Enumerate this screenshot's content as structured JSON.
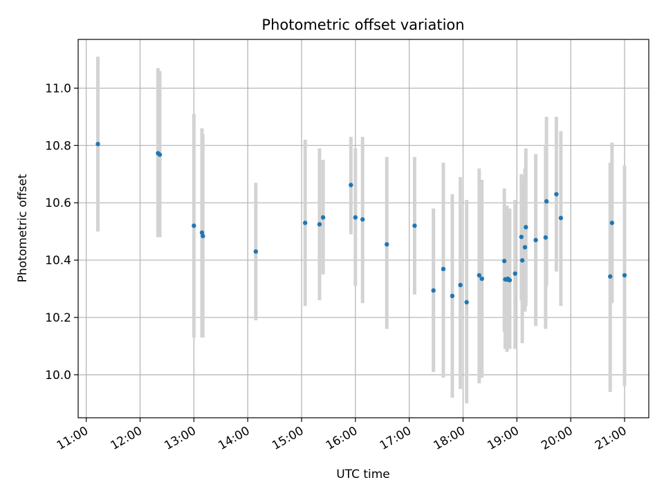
{
  "chart_data": {
    "type": "scatter",
    "title": "Photometric offset variation",
    "xlabel": "UTC time",
    "ylabel": "Photometric offset",
    "x_unit": "UTC clock time (HH:MM)",
    "xlim": [
      "10:51",
      "21:27"
    ],
    "ylim": [
      9.85,
      11.17
    ],
    "x_tick_labels": [
      "11:00",
      "12:00",
      "13:00",
      "14:00",
      "15:00",
      "16:00",
      "17:00",
      "18:00",
      "19:00",
      "20:00",
      "21:00"
    ],
    "y_tick_labels": [
      "10.0",
      "10.2",
      "10.4",
      "10.6",
      "10.8",
      "11.0"
    ],
    "y_tick_values": [
      10.0,
      10.2,
      10.4,
      10.6,
      10.8,
      11.0
    ],
    "grid": true,
    "legend": "none",
    "colors": {
      "point": "#1f77b4",
      "errorbar": "#d3d3d3",
      "grid": "#b0b0b0"
    },
    "series": [
      {
        "points": [
          {
            "x": "11:13",
            "y": 10.805,
            "ymin": 10.5,
            "ymax": 11.11
          },
          {
            "x": "12:20",
            "y": 10.773,
            "ymin": 10.48,
            "ymax": 11.07
          },
          {
            "x": "12:22",
            "y": 10.768,
            "ymin": 10.48,
            "ymax": 11.06
          },
          {
            "x": "13:00",
            "y": 10.52,
            "ymin": 10.13,
            "ymax": 10.91
          },
          {
            "x": "13:09",
            "y": 10.496,
            "ymin": 10.13,
            "ymax": 10.86
          },
          {
            "x": "13:10",
            "y": 10.484,
            "ymin": 10.13,
            "ymax": 10.84
          },
          {
            "x": "14:09",
            "y": 10.43,
            "ymin": 10.19,
            "ymax": 10.67
          },
          {
            "x": "15:04",
            "y": 10.53,
            "ymin": 10.24,
            "ymax": 10.82
          },
          {
            "x": "15:20",
            "y": 10.525,
            "ymin": 10.26,
            "ymax": 10.79
          },
          {
            "x": "15:24",
            "y": 10.549,
            "ymin": 10.35,
            "ymax": 10.75
          },
          {
            "x": "15:55",
            "y": 10.662,
            "ymin": 10.49,
            "ymax": 10.83
          },
          {
            "x": "16:00",
            "y": 10.549,
            "ymin": 10.31,
            "ymax": 10.79
          },
          {
            "x": "16:08",
            "y": 10.542,
            "ymin": 10.25,
            "ymax": 10.83
          },
          {
            "x": "16:35",
            "y": 10.455,
            "ymin": 10.16,
            "ymax": 10.76
          },
          {
            "x": "17:06",
            "y": 10.52,
            "ymin": 10.28,
            "ymax": 10.76
          },
          {
            "x": "17:27",
            "y": 10.294,
            "ymin": 10.01,
            "ymax": 10.58
          },
          {
            "x": "17:38",
            "y": 10.369,
            "ymin": 9.99,
            "ymax": 10.74
          },
          {
            "x": "17:48",
            "y": 10.275,
            "ymin": 9.92,
            "ymax": 10.63
          },
          {
            "x": "17:57",
            "y": 10.313,
            "ymin": 9.95,
            "ymax": 10.69
          },
          {
            "x": "18:04",
            "y": 10.253,
            "ymin": 9.9,
            "ymax": 10.61
          },
          {
            "x": "18:18",
            "y": 10.347,
            "ymin": 9.97,
            "ymax": 10.72
          },
          {
            "x": "18:21",
            "y": 10.335,
            "ymin": 9.99,
            "ymax": 10.68
          },
          {
            "x": "18:46",
            "y": 10.397,
            "ymin": 10.15,
            "ymax": 10.65
          },
          {
            "x": "18:47",
            "y": 10.333,
            "ymin": 10.09,
            "ymax": 10.58
          },
          {
            "x": "18:49",
            "y": 10.332,
            "ymin": 10.08,
            "ymax": 10.59
          },
          {
            "x": "18:50",
            "y": 10.335,
            "ymin": 10.09,
            "ymax": 10.58
          },
          {
            "x": "18:52",
            "y": 10.33,
            "ymin": 10.09,
            "ymax": 10.58
          },
          {
            "x": "18:58",
            "y": 10.353,
            "ymin": 10.09,
            "ymax": 10.61
          },
          {
            "x": "19:05",
            "y": 10.481,
            "ymin": 10.26,
            "ymax": 10.7
          },
          {
            "x": "19:06",
            "y": 10.399,
            "ymin": 10.11,
            "ymax": 10.69
          },
          {
            "x": "19:09",
            "y": 10.445,
            "ymin": 10.22,
            "ymax": 10.72
          },
          {
            "x": "19:10",
            "y": 10.515,
            "ymin": 10.24,
            "ymax": 10.79
          },
          {
            "x": "19:21",
            "y": 10.47,
            "ymin": 10.17,
            "ymax": 10.77
          },
          {
            "x": "19:32",
            "y": 10.479,
            "ymin": 10.16,
            "ymax": 10.8
          },
          {
            "x": "19:33",
            "y": 10.605,
            "ymin": 10.31,
            "ymax": 10.9
          },
          {
            "x": "19:44",
            "y": 10.63,
            "ymin": 10.36,
            "ymax": 10.9
          },
          {
            "x": "19:49",
            "y": 10.547,
            "ymin": 10.24,
            "ymax": 10.85
          },
          {
            "x": "20:44",
            "y": 10.343,
            "ymin": 9.94,
            "ymax": 10.74
          },
          {
            "x": "20:46",
            "y": 10.53,
            "ymin": 10.25,
            "ymax": 10.81
          },
          {
            "x": "21:00",
            "y": 10.347,
            "ymin": 9.96,
            "ymax": 10.73
          }
        ]
      }
    ]
  }
}
